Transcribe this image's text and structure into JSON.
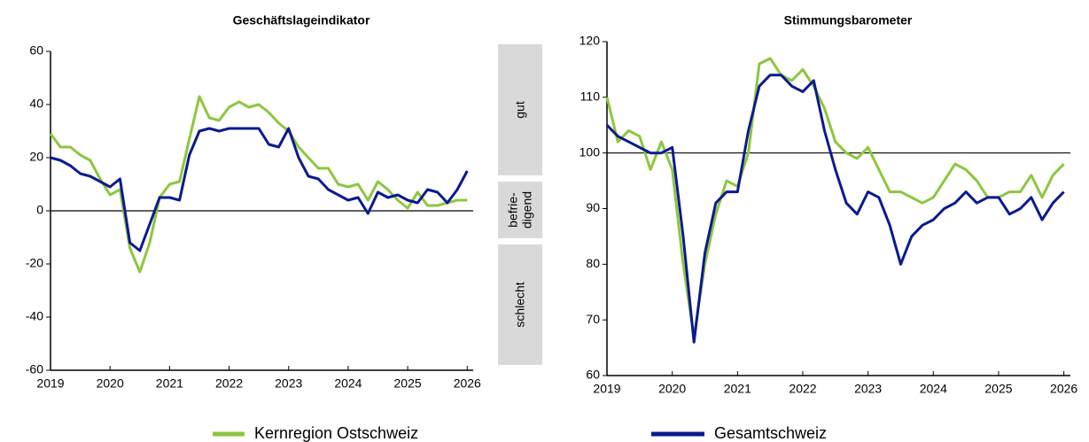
{
  "chart_data": [
    {
      "type": "line",
      "title": "Geschäftslageindikator",
      "x": [
        2019,
        2019.167,
        2019.333,
        2019.5,
        2019.667,
        2019.833,
        2020,
        2020.167,
        2020.333,
        2020.5,
        2020.667,
        2020.833,
        2021,
        2021.167,
        2021.333,
        2021.5,
        2021.667,
        2021.833,
        2022,
        2022.167,
        2022.333,
        2022.5,
        2022.667,
        2022.833,
        2023,
        2023.167,
        2023.333,
        2023.5,
        2023.667,
        2023.833,
        2024,
        2024.167,
        2024.333,
        2024.5,
        2024.667,
        2024.833,
        2025,
        2025.167,
        2025.333,
        2025.5,
        2025.667,
        2025.833,
        2026
      ],
      "series": [
        {
          "name": "Kernregion Ostschweiz",
          "color": "#8dc63f",
          "values": [
            29,
            24,
            24,
            21,
            19,
            12,
            6,
            8,
            -14,
            -23,
            -12,
            5,
            10,
            11,
            27,
            43,
            35,
            34,
            39,
            41,
            39,
            40,
            37,
            33,
            30,
            24,
            20,
            16,
            16,
            10,
            9,
            10,
            4,
            11,
            8,
            4,
            1,
            7,
            2,
            2,
            3,
            4,
            4
          ]
        },
        {
          "name": "Gesamtschweiz",
          "color": "#0b1a8f",
          "values": [
            20,
            19,
            17,
            14,
            13,
            11,
            9,
            12,
            -12,
            -15,
            -5,
            5,
            5,
            4,
            21,
            30,
            31,
            30,
            31,
            31,
            31,
            31,
            25,
            24,
            31,
            20,
            13,
            12,
            8,
            6,
            4,
            5,
            -1,
            7,
            5,
            6,
            4,
            3,
            8,
            7,
            3,
            8,
            15
          ]
        }
      ],
      "xlim": [
        2019,
        2026.1
      ],
      "xticks": [
        2019,
        2020,
        2021,
        2022,
        2023,
        2024,
        2025,
        2026
      ],
      "ylim": [
        -60,
        60
      ],
      "yticks": [
        -60,
        -40,
        -20,
        0,
        20,
        40,
        60
      ],
      "hline": 0,
      "annotations": [
        "gut",
        "befrie-",
        "digend",
        "schlecht"
      ]
    },
    {
      "type": "line",
      "title": "Stimmungsbarometer",
      "x": [
        2019,
        2019.167,
        2019.333,
        2019.5,
        2019.667,
        2019.833,
        2020,
        2020.167,
        2020.333,
        2020.5,
        2020.667,
        2020.833,
        2021,
        2021.167,
        2021.333,
        2021.5,
        2021.667,
        2021.833,
        2022,
        2022.167,
        2022.333,
        2022.5,
        2022.667,
        2022.833,
        2023,
        2023.167,
        2023.333,
        2023.5,
        2023.667,
        2023.833,
        2024,
        2024.167,
        2024.333,
        2024.5,
        2024.667,
        2024.833,
        2025,
        2025.167,
        2025.333,
        2025.5,
        2025.667,
        2025.833,
        2026
      ],
      "series": [
        {
          "name": "Kernregion Ostschweiz",
          "color": "#8dc63f",
          "values": [
            110,
            102,
            104,
            103,
            97,
            102,
            97,
            80,
            67,
            80,
            89,
            95,
            94,
            100,
            116,
            117,
            114,
            113,
            115,
            112,
            108,
            102,
            100,
            99,
            101,
            97,
            93,
            93,
            92,
            91,
            92,
            95,
            98,
            97,
            95,
            92,
            92,
            93,
            93,
            96,
            92,
            96,
            98
          ]
        },
        {
          "name": "Gesamtschweiz",
          "color": "#0b1a8f",
          "values": [
            105,
            103,
            102,
            101,
            100,
            100,
            101,
            85,
            66,
            82,
            91,
            93,
            93,
            104,
            112,
            114,
            114,
            112,
            111,
            113,
            104,
            97,
            91,
            89,
            93,
            92,
            87,
            80,
            85,
            87,
            88,
            90,
            91,
            93,
            91,
            92,
            92,
            89,
            90,
            92,
            88,
            91,
            93
          ]
        }
      ],
      "xlim": [
        2019,
        2026.1
      ],
      "xticks": [
        2019,
        2020,
        2021,
        2022,
        2023,
        2024,
        2025,
        2026
      ],
      "ylim": [
        60,
        120
      ],
      "yticks": [
        60,
        70,
        80,
        90,
        100,
        110,
        120
      ],
      "hline": 100
    }
  ]
}
